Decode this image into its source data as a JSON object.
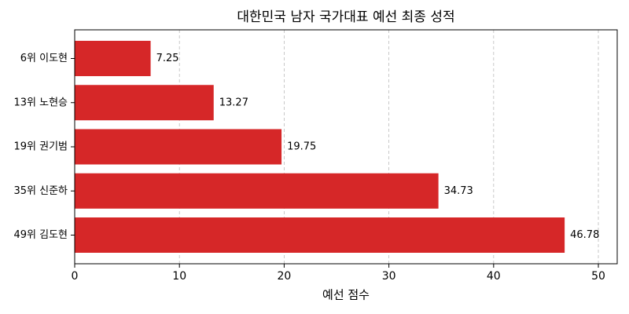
{
  "chart_data": {
    "type": "barh",
    "title": "대한민국 남자 국가대표 예선 최종 성적",
    "x_label": "예선 점수",
    "categories": [
      "6위 이도현",
      "13위 노현승",
      "19위 권기범",
      "35위 신준하",
      "49위 김도현"
    ],
    "values": [
      7.25,
      13.27,
      19.75,
      34.73,
      46.78
    ],
    "color": "#d62728",
    "xlim": [
      0,
      51.8
    ],
    "xticks": [
      0,
      10,
      20,
      30,
      40,
      50
    ],
    "grid": true
  }
}
